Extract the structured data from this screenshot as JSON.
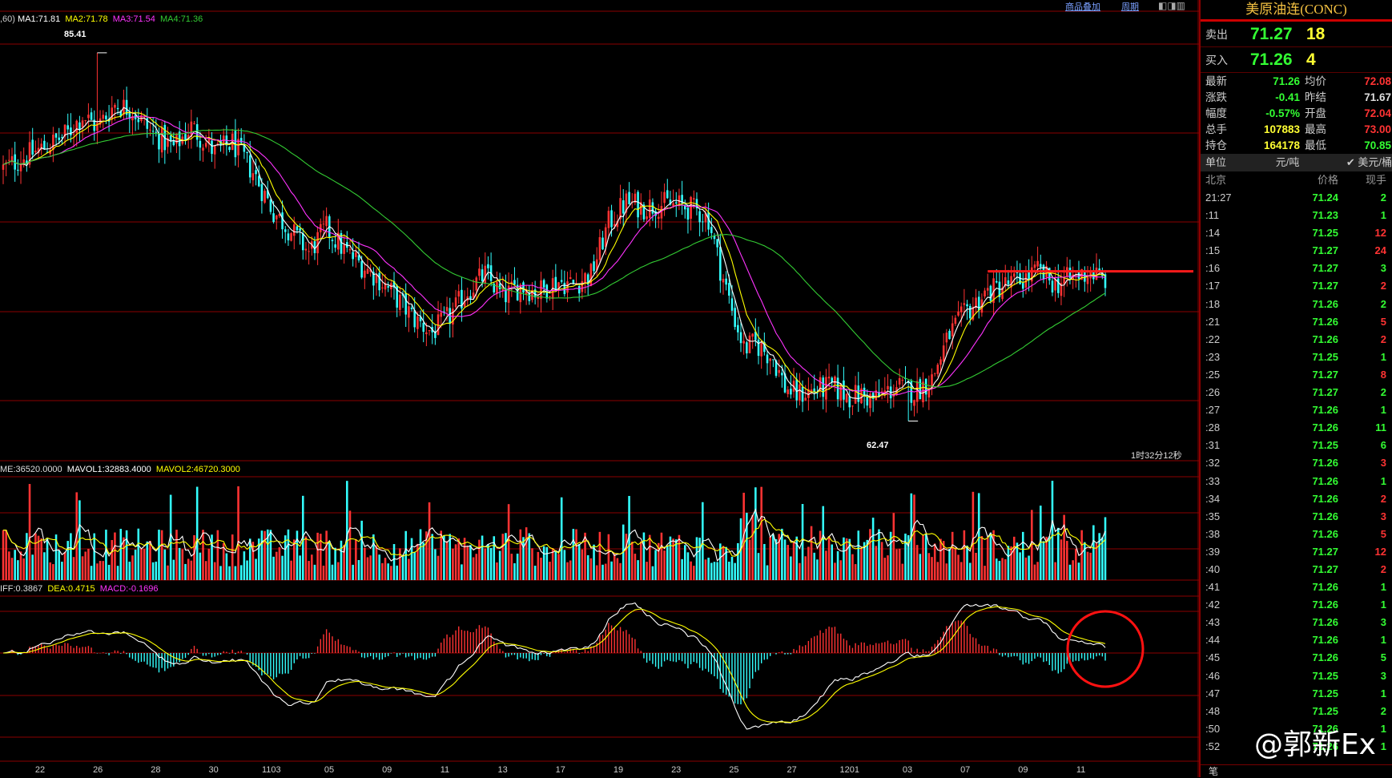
{
  "toolbar": {
    "overlay_label": "商品叠加",
    "period_label": "周期"
  },
  "price_panel": {
    "ma_prefix": ",60)",
    "ma": [
      {
        "label": "MA1:71.81",
        "color": "#ffffff"
      },
      {
        "label": "MA2:71.78",
        "color": "#ffff00"
      },
      {
        "label": "MA3:71.54",
        "color": "#ff33ff"
      },
      {
        "label": "MA4:71.36",
        "color": "#33cc33"
      }
    ],
    "high_label": "85.41",
    "low_label": "62.47",
    "countdown": "1时32分12秒"
  },
  "volume_panel": {
    "vol_label": "ME:36520.0000",
    "mavol1_label": "MAVOL1:32883.4000",
    "mavol2_label": "MAVOL2:46720.3000"
  },
  "macd_panel": {
    "diff_label": "IFF:0.3867",
    "dea_label": "DEA:0.4715",
    "macd_label": "MACD:-0.1696"
  },
  "x_axis_dates": [
    "22",
    "26",
    "28",
    "30",
    "1103",
    "05",
    "09",
    "11",
    "13",
    "17",
    "19",
    "23",
    "25",
    "27",
    "1201",
    "03",
    "07",
    "09",
    "11"
  ],
  "colors": {
    "up": "#ff3333",
    "down": "#33ffff",
    "ma1": "#ffffff",
    "ma2": "#ffff00",
    "ma3": "#ff33ff",
    "ma4": "#33cc33",
    "grid": "#8b0000"
  },
  "chart_data": {
    "type": "candlestick",
    "ylim": [
      60.0,
      88.0
    ],
    "high": 85.41,
    "low": 62.47,
    "support_level": 71.8,
    "close_path": [
      [
        0,
        78.2
      ],
      [
        8,
        79.0
      ],
      [
        15,
        79.6
      ],
      [
        22,
        80.4
      ],
      [
        27,
        81.5
      ],
      [
        32,
        80.8
      ],
      [
        38,
        82.2
      ],
      [
        44,
        81.9
      ],
      [
        50,
        80.5
      ],
      [
        58,
        79.5
      ],
      [
        64,
        80.8
      ],
      [
        72,
        79.2
      ],
      [
        78,
        79.8
      ],
      [
        85,
        78.0
      ],
      [
        92,
        75.5
      ],
      [
        98,
        74.3
      ],
      [
        104,
        73.0
      ],
      [
        110,
        74.5
      ],
      [
        116,
        73.1
      ],
      [
        122,
        72.2
      ],
      [
        128,
        71.3
      ],
      [
        134,
        70.1
      ],
      [
        140,
        68.8
      ],
      [
        146,
        68.0
      ],
      [
        152,
        69.0
      ],
      [
        158,
        70.6
      ],
      [
        164,
        71.6
      ],
      [
        170,
        70.2
      ],
      [
        176,
        70.9
      ],
      [
        182,
        70.5
      ],
      [
        188,
        71.2
      ],
      [
        194,
        71.0
      ],
      [
        200,
        71.6
      ],
      [
        206,
        74.8
      ],
      [
        212,
        76.1
      ],
      [
        218,
        75.8
      ],
      [
        224,
        76.0
      ],
      [
        230,
        75.9
      ],
      [
        236,
        75.6
      ],
      [
        240,
        75.1
      ],
      [
        244,
        72.0
      ],
      [
        248,
        69.4
      ],
      [
        252,
        67.0
      ],
      [
        256,
        67.3
      ],
      [
        262,
        66.4
      ],
      [
        266,
        64.6
      ],
      [
        270,
        64.1
      ],
      [
        276,
        64.4
      ],
      [
        282,
        64.6
      ],
      [
        288,
        64.0
      ],
      [
        292,
        64.1
      ],
      [
        296,
        63.8
      ],
      [
        300,
        64.2
      ],
      [
        304,
        64.6
      ],
      [
        310,
        64.3
      ],
      [
        316,
        65.1
      ],
      [
        322,
        67.9
      ],
      [
        328,
        69.3
      ],
      [
        334,
        70.4
      ],
      [
        340,
        70.9
      ],
      [
        346,
        71.2
      ],
      [
        352,
        71.8
      ],
      [
        358,
        71.0
      ],
      [
        364,
        71.4
      ],
      [
        370,
        71.8
      ],
      [
        374,
        71.3
      ],
      [
        376,
        71.26
      ]
    ],
    "volume": {
      "max": 60000,
      "current": 36520,
      "mavol1": 32883.4,
      "mavol2": 46720.3
    },
    "macd": {
      "diff": 0.3867,
      "dea": 0.4715,
      "macd": -0.1696
    }
  },
  "panel": {
    "title": "美原油连(CONC)",
    "sell": {
      "label": "卖出",
      "price": "71.27",
      "vol": "18"
    },
    "buy": {
      "label": "买入",
      "price": "71.26",
      "vol": "4"
    },
    "stats": [
      {
        "l1": "最新",
        "v1": "71.26",
        "c1": "#33ff33",
        "l2": "均价",
        "v2": "72.08",
        "c2": "#ff3333"
      },
      {
        "l1": "涨跌",
        "v1": "-0.41",
        "c1": "#33ff33",
        "l2": "昨结",
        "v2": "71.67",
        "c2": "#dddddd"
      },
      {
        "l1": "幅度",
        "v1": "-0.57%",
        "c1": "#33ff33",
        "l2": "开盘",
        "v2": "72.04",
        "c2": "#ff3333"
      },
      {
        "l1": "总手",
        "v1": "107883",
        "c1": "#ffff33",
        "l2": "最高",
        "v2": "73.00",
        "c2": "#ff3333"
      },
      {
        "l1": "持仓",
        "v1": "164178",
        "c1": "#ffff33",
        "l2": "最低",
        "v2": "70.85",
        "c2": "#33ff33"
      }
    ],
    "unit_label": "单位",
    "unit_left": "元/吨",
    "unit_right": "✔ 美元/桶",
    "ticks_head": {
      "time": "北京",
      "price": "价格",
      "vol": "现手"
    },
    "ticks": [
      {
        "t": "21:27",
        "p": "71.24",
        "v": "2",
        "vc": "#33ff33"
      },
      {
        "t": ":11",
        "p": "71.23",
        "v": "1",
        "vc": "#33ff33"
      },
      {
        "t": ":14",
        "p": "71.25",
        "v": "12",
        "vc": "#ff3333"
      },
      {
        "t": ":15",
        "p": "71.27",
        "v": "24",
        "vc": "#ff3333"
      },
      {
        "t": ":16",
        "p": "71.27",
        "v": "3",
        "vc": "#33ff33"
      },
      {
        "t": ":17",
        "p": "71.27",
        "v": "2",
        "vc": "#ff3333"
      },
      {
        "t": ":18",
        "p": "71.26",
        "v": "2",
        "vc": "#33ff33"
      },
      {
        "t": ":21",
        "p": "71.26",
        "v": "5",
        "vc": "#ff3333"
      },
      {
        "t": ":22",
        "p": "71.26",
        "v": "2",
        "vc": "#ff3333"
      },
      {
        "t": ":23",
        "p": "71.25",
        "v": "1",
        "vc": "#33ff33"
      },
      {
        "t": ":25",
        "p": "71.27",
        "v": "8",
        "vc": "#ff3333"
      },
      {
        "t": ":26",
        "p": "71.27",
        "v": "2",
        "vc": "#33ff33"
      },
      {
        "t": ":27",
        "p": "71.26",
        "v": "1",
        "vc": "#33ff33"
      },
      {
        "t": ":28",
        "p": "71.26",
        "v": "11",
        "vc": "#33ff33"
      },
      {
        "t": ":31",
        "p": "71.25",
        "v": "6",
        "vc": "#33ff33"
      },
      {
        "t": ":32",
        "p": "71.26",
        "v": "3",
        "vc": "#ff3333"
      },
      {
        "t": ":33",
        "p": "71.26",
        "v": "1",
        "vc": "#33ff33"
      },
      {
        "t": ":34",
        "p": "71.26",
        "v": "2",
        "vc": "#ff3333"
      },
      {
        "t": ":35",
        "p": "71.26",
        "v": "3",
        "vc": "#ff3333"
      },
      {
        "t": ":38",
        "p": "71.26",
        "v": "5",
        "vc": "#ff3333"
      },
      {
        "t": ":39",
        "p": "71.27",
        "v": "12",
        "vc": "#ff3333"
      },
      {
        "t": ":40",
        "p": "71.27",
        "v": "2",
        "vc": "#ff3333"
      },
      {
        "t": ":41",
        "p": "71.26",
        "v": "1",
        "vc": "#33ff33"
      },
      {
        "t": ":42",
        "p": "71.26",
        "v": "1",
        "vc": "#33ff33"
      },
      {
        "t": ":43",
        "p": "71.26",
        "v": "3",
        "vc": "#33ff33"
      },
      {
        "t": ":44",
        "p": "71.26",
        "v": "1",
        "vc": "#33ff33"
      },
      {
        "t": ":45",
        "p": "71.26",
        "v": "5",
        "vc": "#33ff33"
      },
      {
        "t": ":46",
        "p": "71.25",
        "v": "3",
        "vc": "#33ff33"
      },
      {
        "t": ":47",
        "p": "71.25",
        "v": "1",
        "vc": "#33ff33"
      },
      {
        "t": ":48",
        "p": "71.25",
        "v": "2",
        "vc": "#33ff33"
      },
      {
        "t": ":50",
        "p": "71.26",
        "v": "1",
        "vc": "#33ff33"
      },
      {
        "t": ":52",
        "p": "71.26",
        "v": "1",
        "vc": "#33ff33"
      }
    ],
    "bottom_tab": "笔"
  },
  "watermark": "@郭新Ex"
}
